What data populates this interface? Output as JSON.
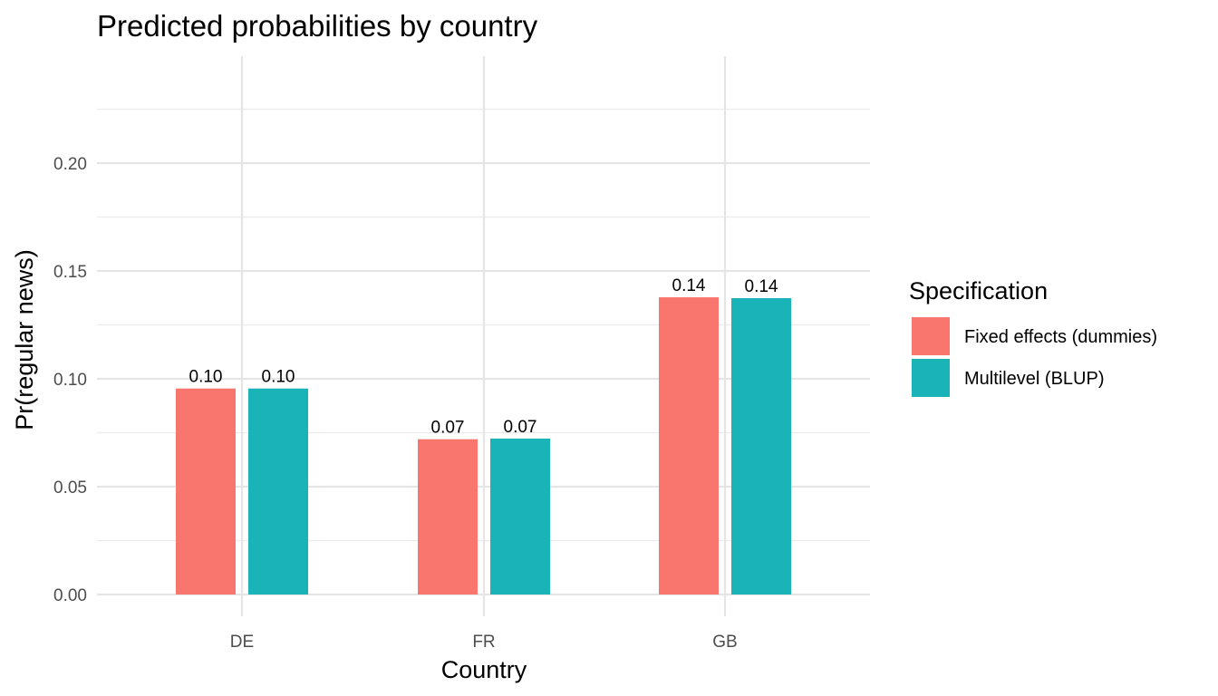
{
  "chart_data": {
    "type": "bar",
    "title": "Predicted probabilities by country",
    "xlabel": "Country",
    "ylabel": "Pr(regular news)",
    "categories": [
      "DE",
      "FR",
      "GB"
    ],
    "series": [
      {
        "name": "Fixed effects (dummies)",
        "values": [
          0.0955,
          0.072,
          0.1378
        ],
        "labels": [
          "0.10",
          "0.07",
          "0.14"
        ],
        "color": "#F8766D"
      },
      {
        "name": "Multilevel (BLUP)",
        "values": [
          0.0955,
          0.0723,
          0.1374
        ],
        "labels": [
          "0.10",
          "0.07",
          "0.14"
        ],
        "color": "#1AB4B8"
      }
    ],
    "ylim": [
      0,
      0.24
    ],
    "yticks": [
      0.0,
      0.05,
      0.1,
      0.15,
      0.2
    ],
    "ytick_labels": [
      "0.00",
      "0.05",
      "0.10",
      "0.15",
      "0.20"
    ],
    "grid": true,
    "legend": {
      "title": "Specification",
      "position": "right"
    }
  }
}
